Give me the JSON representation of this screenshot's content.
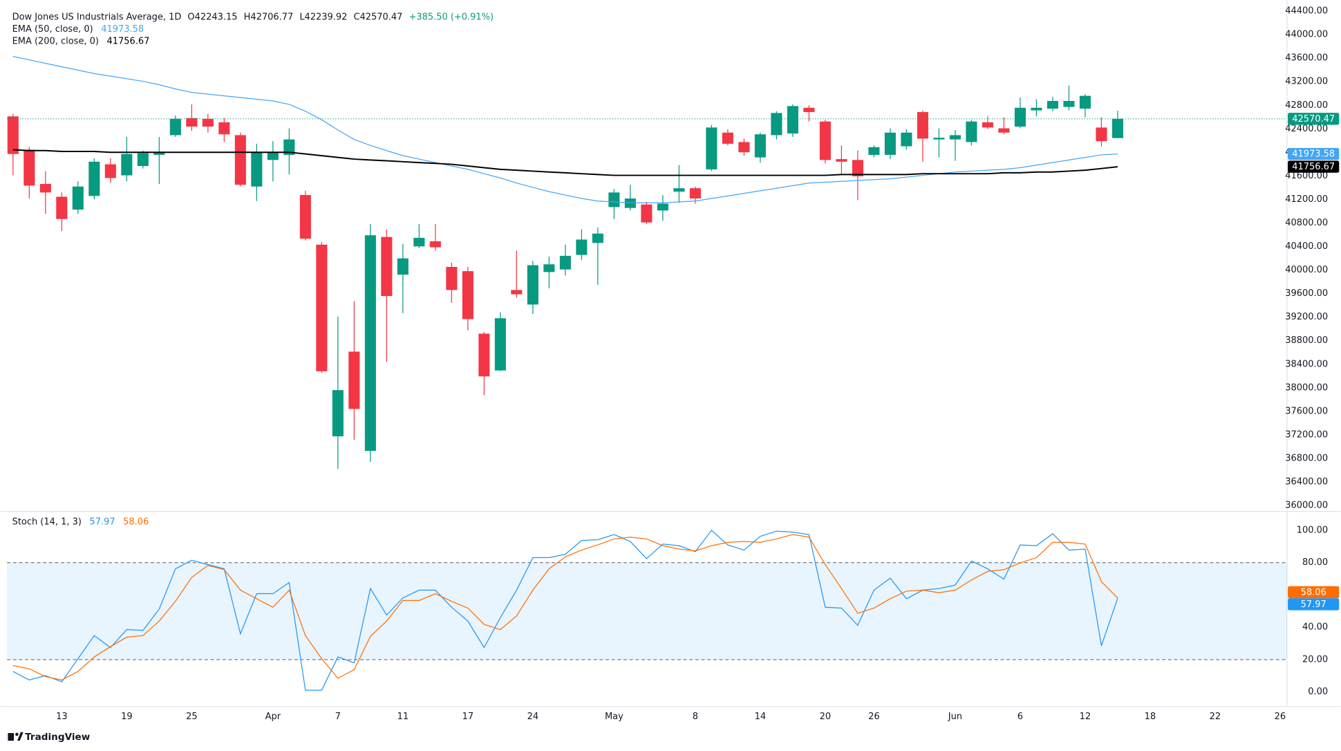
{
  "chart_data": [
    {
      "type": "candlestick",
      "title": "Dow Jones US Industrials Average, 1D",
      "ohlc_text": [
        "O42243.15",
        "H42706.77",
        "L42239.92",
        "C42570.47"
      ],
      "change": "+385.50 (+0.91%)",
      "categories": [
        null,
        null,
        null,
        "13",
        null,
        null,
        null,
        "19",
        null,
        null,
        null,
        "25",
        null,
        null,
        null,
        null,
        "Apr",
        null,
        null,
        null,
        "7",
        null,
        null,
        null,
        "11",
        null,
        null,
        null,
        "17",
        null,
        null,
        null,
        "24",
        null,
        null,
        null,
        null,
        "May",
        null,
        null,
        null,
        null,
        "8",
        null,
        null,
        null,
        "14",
        null,
        null,
        null,
        "20",
        null,
        null,
        "26",
        null,
        null,
        null,
        null,
        "Jun",
        null,
        null,
        null,
        "6",
        null,
        null,
        null,
        "12",
        null,
        null,
        null,
        "18",
        null,
        null,
        null,
        "22",
        null,
        null,
        null,
        "26"
      ],
      "ohlc": {
        "open": [
          42612,
          42045,
          41464,
          41246,
          41028,
          41260,
          41798,
          41610,
          41769,
          41958,
          42293,
          42583,
          42570,
          42511,
          42293,
          41420,
          41871,
          41958,
          41275,
          40432,
          37176,
          38615,
          36929,
          40563,
          39923,
          40403,
          40490,
          40054,
          39982,
          38920,
          38295,
          39662,
          39415,
          39967,
          40011,
          40258,
          40461,
          41071,
          41056,
          41115,
          41013,
          41333,
          41391,
          41712,
          42336,
          42176,
          41915,
          42293,
          42321,
          42758,
          42525,
          41886,
          41871,
          41958,
          41958,
          42104,
          42685,
          42220,
          42220,
          42176,
          42511,
          42409,
          42438,
          42714,
          42743,
          42772,
          42743,
          42423,
          42243.15,
          null,
          null,
          null,
          null,
          null,
          null,
          null,
          null,
          null,
          null
        ],
        "high": [
          42656,
          42089,
          41682,
          41319,
          41508,
          41900,
          41900,
          42263,
          42031,
          42263,
          42627,
          42816,
          42656,
          42583,
          42336,
          42147,
          42191,
          42409,
          41348,
          40476,
          39211,
          39473,
          40781,
          40693,
          40447,
          40781,
          40781,
          40127,
          40054,
          38949,
          39284,
          40330,
          40156,
          40229,
          40432,
          40693,
          40723,
          41377,
          41449,
          41159,
          41275,
          41784,
          41420,
          42467,
          42394,
          42234,
          42336,
          42700,
          42816,
          42801,
          42554,
          42118,
          42031,
          42118,
          42409,
          42394,
          42714,
          42409,
          42380,
          42554,
          42612,
          42598,
          42932,
          42903,
          42946,
          43136,
          42990,
          42598,
          42706.77,
          null,
          null,
          null,
          null,
          null,
          null,
          null,
          null,
          null,
          null
        ],
        "low": [
          41610,
          41217,
          40955,
          40664,
          40955,
          41202,
          41479,
          41508,
          41726,
          41464,
          42263,
          42365,
          42336,
          42176,
          41420,
          41173,
          41508,
          41624,
          40505,
          38252,
          36624,
          37118,
          36740,
          38441,
          39269,
          40374,
          40330,
          39444,
          38978,
          37874,
          38281,
          39531,
          39255,
          39691,
          39909,
          40170,
          39749,
          40868,
          41013,
          40781,
          40839,
          41144,
          41130,
          41682,
          42118,
          41944,
          41827,
          42220,
          42263,
          42525,
          41813,
          41624,
          41188,
          41915,
          41886,
          42045,
          41842,
          41915,
          41857,
          42118,
          42394,
          42307,
          42409,
          42612,
          42700,
          42714,
          42598,
          42104,
          42239.92,
          null,
          null,
          null,
          null,
          null,
          null,
          null,
          null,
          null,
          null
        ],
        "close": [
          41973,
          41435,
          41319,
          40868,
          41420,
          41842,
          41565,
          41973,
          41987,
          42002,
          42570,
          42438,
          42438,
          42307,
          41449,
          42002,
          42002,
          42220,
          40534,
          38281,
          37961,
          37641,
          40592,
          39560,
          40199,
          40548,
          40388,
          39662,
          39167,
          38194,
          39182,
          39589,
          40083,
          40098,
          40243,
          40519,
          40621,
          41319,
          41217,
          40810,
          41130,
          41391,
          41217,
          42423,
          42147,
          42002,
          42307,
          42670,
          42787,
          42685,
          41871,
          41842,
          41594,
          42089,
          42336,
          42336,
          42234,
          42249,
          42293,
          42525,
          42423,
          42336,
          42758,
          42758,
          42874,
          42874,
          42961,
          42191,
          42570.47,
          null,
          null,
          null,
          null,
          null,
          null,
          null,
          null,
          null,
          null
        ]
      },
      "up_color": "#089981",
      "down_color": "#f23645",
      "series": [
        {
          "name": "EMA (50, close, 0)",
          "color": "#42a5f5",
          "values": [
            43630,
            43572,
            43513,
            43455,
            43397,
            43339,
            43295,
            43252,
            43208,
            43150,
            43078,
            43019,
            42990,
            42961,
            42932,
            42903,
            42874,
            42816,
            42700,
            42554,
            42380,
            42220,
            42118,
            42031,
            41944,
            41886,
            41827,
            41769,
            41712,
            41638,
            41565,
            41479,
            41406,
            41333,
            41275,
            41217,
            41173,
            41159,
            41144,
            41144,
            41144,
            41159,
            41173,
            41217,
            41260,
            41304,
            41348,
            41391,
            41435,
            41479,
            41493,
            41508,
            41522,
            41537,
            41551,
            41580,
            41610,
            41638,
            41667,
            41682,
            41697,
            41712,
            41740,
            41784,
            41827,
            41871,
            41915,
            41958,
            41973.58,
            null,
            null,
            null,
            null,
            null,
            null,
            null,
            null,
            null,
            null
          ]
        },
        {
          "name": "EMA (200, close, 0)",
          "color": "#000000",
          "values": [
            42045,
            42031,
            42031,
            42016,
            42016,
            42016,
            42002,
            42002,
            42002,
            42002,
            42002,
            42002,
            42002,
            42002,
            42002,
            42002,
            42002,
            42002,
            41973,
            41944,
            41915,
            41886,
            41871,
            41857,
            41842,
            41827,
            41813,
            41798,
            41769,
            41740,
            41712,
            41697,
            41682,
            41667,
            41653,
            41638,
            41624,
            41610,
            41610,
            41610,
            41610,
            41610,
            41610,
            41610,
            41610,
            41610,
            41610,
            41610,
            41610,
            41610,
            41610,
            41624,
            41624,
            41624,
            41624,
            41624,
            41638,
            41638,
            41638,
            41638,
            41638,
            41653,
            41653,
            41667,
            41667,
            41682,
            41697,
            41726,
            41756.67,
            null,
            null,
            null,
            null,
            null,
            null,
            null,
            null,
            null,
            null
          ]
        }
      ],
      "ylim": [
        35913,
        44473
      ],
      "yticks": [
        {
          "value": 36000,
          "label": "36000.00"
        },
        {
          "value": 36400,
          "label": "36400.00"
        },
        {
          "value": 36800,
          "label": "36800.00"
        },
        {
          "value": 37200,
          "label": "37200.00"
        },
        {
          "value": 37600,
          "label": "37600.00"
        },
        {
          "value": 38000,
          "label": "38000.00"
        },
        {
          "value": 38400,
          "label": "38400.00"
        },
        {
          "value": 38800,
          "label": "38800.00"
        },
        {
          "value": 39200,
          "label": "39200.00"
        },
        {
          "value": 39600,
          "label": "39600.00"
        },
        {
          "value": 40000,
          "label": "40000.00"
        },
        {
          "value": 40400,
          "label": "40400.00"
        },
        {
          "value": 40800,
          "label": "40800.00"
        },
        {
          "value": 41200,
          "label": "41200.00"
        },
        {
          "value": 41600,
          "label": "41600.00"
        },
        {
          "value": 42000,
          "label": "42000.00"
        },
        {
          "value": 42400,
          "label": "42400.00"
        },
        {
          "value": 42800,
          "label": "42800.00"
        },
        {
          "value": 43200,
          "label": "43200.00"
        },
        {
          "value": 43600,
          "label": "43600.00"
        },
        {
          "value": 44000,
          "label": "44000.00"
        },
        {
          "value": 44400,
          "label": "44400.00"
        }
      ],
      "grid": false
    },
    {
      "type": "line",
      "title": "Stoch (14, 1, 3)",
      "series": [
        {
          "color": "#2196f3",
          "values": [
            12.7,
            7.4,
            10.1,
            6.3,
            20.6,
            34.9,
            27.5,
            38.6,
            38.1,
            51.3,
            76.2,
            81.5,
            78.8,
            76.2,
            36.0,
            60.8,
            60.8,
            67.7,
            1.1,
            1.1,
            21.7,
            18.0,
            64.0,
            47.6,
            58.2,
            63.0,
            63.0,
            52.4,
            43.9,
            27.5,
            46.0,
            63.0,
            83.1,
            83.1,
            85.2,
            93.7,
            94.2,
            97.4,
            93.1,
            82.5,
            91.5,
            90.5,
            86.8,
            100,
            91.0,
            87.8,
            96.3,
            99.5,
            98.9,
            97.4,
            52.4,
            51.9,
            41.3,
            63.0,
            70.4,
            57.7,
            63.0,
            64.0,
            66.1,
            81.0,
            76.2,
            69.8,
            91.0,
            90.5,
            97.9,
            87.8,
            88.4,
            28.6,
            57.97,
            null,
            null,
            null,
            null,
            null,
            null,
            null,
            null,
            null,
            null
          ]
        },
        {
          "color": "#ff6d00",
          "values": [
            16.4,
            14.3,
            9.5,
            7.4,
            12.7,
            21.7,
            28.0,
            33.9,
            34.9,
            43.9,
            56.1,
            70.9,
            78.3,
            75.7,
            63.0,
            57.7,
            52.4,
            63.0,
            34.9,
            20.6,
            8.5,
            13.8,
            34.4,
            43.9,
            56.6,
            56.6,
            60.8,
            56.1,
            51.9,
            41.8,
            38.6,
            47.1,
            63.0,
            76.2,
            83.6,
            87.8,
            91.0,
            94.7,
            95.8,
            94.7,
            90.5,
            88.4,
            87.3,
            90.5,
            92.6,
            93.1,
            92.6,
            94.7,
            97.4,
            95.8,
            78.8,
            64.0,
            48.7,
            51.9,
            57.7,
            62.4,
            63.0,
            61.4,
            63.0,
            69.3,
            74.6,
            75.7,
            79.9,
            83.1,
            92.6,
            92.6,
            91.5,
            68.3,
            58.06,
            null,
            null,
            null,
            null,
            null,
            null,
            null,
            null,
            null,
            null
          ]
        }
      ],
      "band": [
        20,
        80
      ],
      "band_color": "#2196f3",
      "ylim": [
        -9,
        110.6
      ],
      "yticks": [
        {
          "value": 0,
          "label": "0.00"
        },
        {
          "value": 20,
          "label": "20.00"
        },
        {
          "value": 40,
          "label": "40.00"
        },
        {
          "value": 60,
          "label": "60.00"
        },
        {
          "value": 80,
          "label": "80.00"
        },
        {
          "value": 100,
          "label": "100.00"
        }
      ],
      "grid": false
    }
  ],
  "footer": {
    "brand": "TradingView"
  }
}
